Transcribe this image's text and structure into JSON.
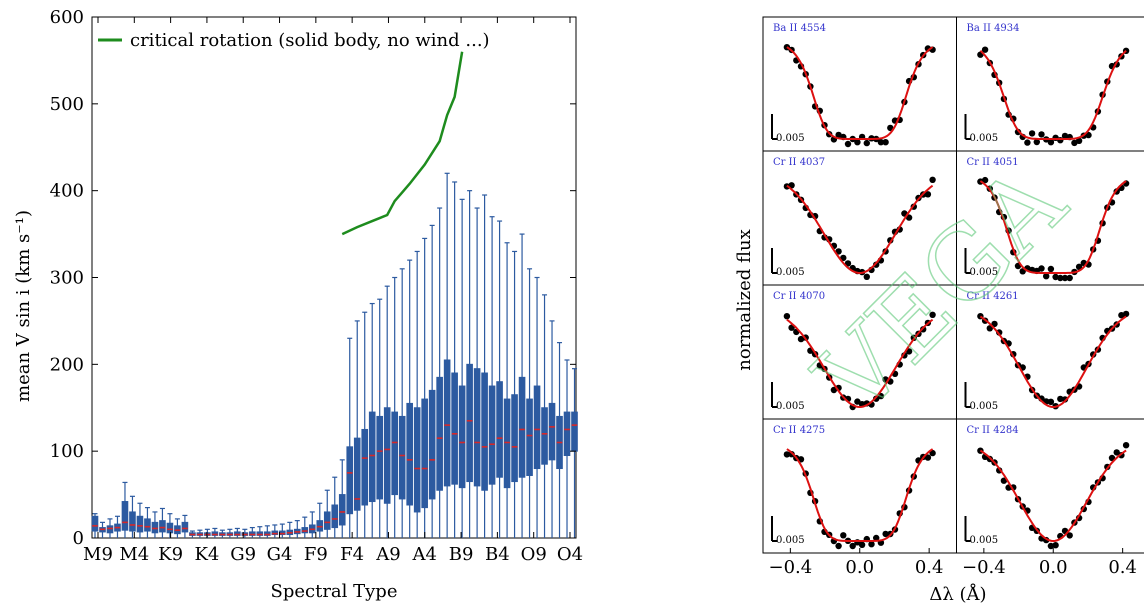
{
  "chart_data": [
    {
      "type": "box",
      "xlabel": "Spectral Type",
      "ylabel": "mean V sin i (km s⁻¹)",
      "ylim": [
        0,
        600
      ],
      "yticks": [
        0,
        100,
        200,
        300,
        400,
        500,
        600
      ],
      "xtick_labels": [
        "M9",
        "M4",
        "K9",
        "K4",
        "G9",
        "G4",
        "F9",
        "F4",
        "A9",
        "A4",
        "B9",
        "B4",
        "O9",
        "O4"
      ],
      "legend": {
        "position": "top-left",
        "entries": [
          "critical rotation (solid body, no wind ...)"
        ]
      },
      "colors": {
        "box": "#2c5aa0",
        "median": "#d62728",
        "critical": "#1e8c1e"
      },
      "critical_rotation": {
        "name": "critical rotation (solid body, no wind ...)",
        "points": [
          [
            33,
            350
          ],
          [
            35,
            358
          ],
          [
            37,
            365
          ],
          [
            39,
            372
          ],
          [
            40,
            388
          ],
          [
            41,
            398
          ],
          [
            42,
            408
          ],
          [
            44,
            430
          ],
          [
            46,
            457
          ],
          [
            47,
            487
          ],
          [
            48,
            508
          ],
          [
            49,
            560
          ]
        ]
      },
      "boxes": [
        {
          "q1": 8,
          "q3": 25,
          "median": 14,
          "whisker": 28
        },
        {
          "q1": 7,
          "q3": 12,
          "median": 10,
          "whisker": 18
        },
        {
          "q1": 6,
          "q3": 14,
          "median": 11,
          "whisker": 22
        },
        {
          "q1": 8,
          "q3": 16,
          "median": 12,
          "whisker": 25
        },
        {
          "q1": 9,
          "q3": 42,
          "median": 18,
          "whisker": 64
        },
        {
          "q1": 8,
          "q3": 30,
          "median": 15,
          "whisker": 48
        },
        {
          "q1": 7,
          "q3": 25,
          "median": 14,
          "whisker": 40
        },
        {
          "q1": 8,
          "q3": 22,
          "median": 13,
          "whisker": 35
        },
        {
          "q1": 6,
          "q3": 18,
          "median": 11,
          "whisker": 30
        },
        {
          "q1": 7,
          "q3": 20,
          "median": 12,
          "whisker": 34
        },
        {
          "q1": 6,
          "q3": 17,
          "median": 10,
          "whisker": 28
        },
        {
          "q1": 5,
          "q3": 14,
          "median": 9,
          "whisker": 22
        },
        {
          "q1": 7,
          "q3": 18,
          "median": 11,
          "whisker": 26
        },
        {
          "q1": 3,
          "q3": 6,
          "median": 4,
          "whisker": 8
        },
        {
          "q1": 3,
          "q3": 6,
          "median": 4,
          "whisker": 9
        },
        {
          "q1": 3,
          "q3": 6,
          "median": 4,
          "whisker": 10
        },
        {
          "q1": 3,
          "q3": 7,
          "median": 4,
          "whisker": 11
        },
        {
          "q1": 3,
          "q3": 6,
          "median": 4,
          "whisker": 9
        },
        {
          "q1": 3,
          "q3": 6,
          "median": 4,
          "whisker": 10
        },
        {
          "q1": 3,
          "q3": 7,
          "median": 4,
          "whisker": 11
        },
        {
          "q1": 3,
          "q3": 6,
          "median": 4,
          "whisker": 10
        },
        {
          "q1": 3,
          "q3": 7,
          "median": 4,
          "whisker": 12
        },
        {
          "q1": 3,
          "q3": 7,
          "median": 4,
          "whisker": 13
        },
        {
          "q1": 3,
          "q3": 7,
          "median": 4,
          "whisker": 14
        },
        {
          "q1": 4,
          "q3": 8,
          "median": 5,
          "whisker": 15
        },
        {
          "q1": 4,
          "q3": 8,
          "median": 5,
          "whisker": 16
        },
        {
          "q1": 4,
          "q3": 9,
          "median": 6,
          "whisker": 18
        },
        {
          "q1": 5,
          "q3": 10,
          "median": 7,
          "whisker": 20
        },
        {
          "q1": 6,
          "q3": 12,
          "median": 8,
          "whisker": 24
        },
        {
          "q1": 6,
          "q3": 15,
          "median": 10,
          "whisker": 30
        },
        {
          "q1": 8,
          "q3": 20,
          "median": 13,
          "whisker": 40
        },
        {
          "q1": 10,
          "q3": 30,
          "median": 18,
          "whisker": 55
        },
        {
          "q1": 12,
          "q3": 38,
          "median": 22,
          "whisker": 70
        },
        {
          "q1": 15,
          "q3": 50,
          "median": 30,
          "whisker": 90
        },
        {
          "q1": 28,
          "q3": 105,
          "median": 75,
          "whisker": 230
        },
        {
          "q1": 32,
          "q3": 115,
          "median": 45,
          "whisker": 250
        },
        {
          "q1": 38,
          "q3": 125,
          "median": 92,
          "whisker": 260
        },
        {
          "q1": 42,
          "q3": 145,
          "median": 95,
          "whisker": 270
        },
        {
          "q1": 45,
          "q3": 140,
          "median": 100,
          "whisker": 275
        },
        {
          "q1": 40,
          "q3": 150,
          "median": 102,
          "whisker": 290
        },
        {
          "q1": 50,
          "q3": 145,
          "median": 110,
          "whisker": 300
        },
        {
          "q1": 45,
          "q3": 140,
          "median": 95,
          "whisker": 310
        },
        {
          "q1": 38,
          "q3": 155,
          "median": 90,
          "whisker": 320
        },
        {
          "q1": 30,
          "q3": 150,
          "median": 80,
          "whisker": 330
        },
        {
          "q1": 35,
          "q3": 160,
          "median": 80,
          "whisker": 345
        },
        {
          "q1": 45,
          "q3": 170,
          "median": 90,
          "whisker": 360
        },
        {
          "q1": 55,
          "q3": 185,
          "median": 115,
          "whisker": 380
        },
        {
          "q1": 60,
          "q3": 205,
          "median": 130,
          "whisker": 420
        },
        {
          "q1": 62,
          "q3": 190,
          "median": 120,
          "whisker": 410
        },
        {
          "q1": 58,
          "q3": 175,
          "median": 110,
          "whisker": 390
        },
        {
          "q1": 65,
          "q3": 200,
          "median": 135,
          "whisker": 400
        },
        {
          "q1": 60,
          "q3": 195,
          "median": 110,
          "whisker": 380
        },
        {
          "q1": 55,
          "q3": 190,
          "median": 105,
          "whisker": 395
        },
        {
          "q1": 62,
          "q3": 175,
          "median": 108,
          "whisker": 370
        },
        {
          "q1": 70,
          "q3": 180,
          "median": 115,
          "whisker": 365
        },
        {
          "q1": 58,
          "q3": 160,
          "median": 110,
          "whisker": 340
        },
        {
          "q1": 65,
          "q3": 165,
          "median": 105,
          "whisker": 330
        },
        {
          "q1": 70,
          "q3": 185,
          "median": 125,
          "whisker": 350
        },
        {
          "q1": 72,
          "q3": 160,
          "median": 118,
          "whisker": 310
        },
        {
          "q1": 80,
          "q3": 175,
          "median": 125,
          "whisker": 300
        },
        {
          "q1": 85,
          "q3": 150,
          "median": 120,
          "whisker": 280
        },
        {
          "q1": 90,
          "q3": 155,
          "median": 128,
          "whisker": 250
        },
        {
          "q1": 80,
          "q3": 140,
          "median": 110,
          "whisker": 225
        },
        {
          "q1": 95,
          "q3": 145,
          "median": 125,
          "whisker": 205
        },
        {
          "q1": 100,
          "q3": 145,
          "median": 130,
          "whisker": 195
        }
      ]
    },
    {
      "type": "line",
      "ylabel": "normalized flux",
      "xlabel": "Δλ (Å)",
      "xlim": [
        -0.5,
        0.5
      ],
      "xtick_labels": [
        "−0.4",
        "0.0",
        "0.4"
      ],
      "scale_bar_label": "0.005",
      "watermark": "VEGA",
      "colors": {
        "points": "#000000",
        "fit": "#dd1111",
        "title": "#3333cc",
        "watermark": "#5fc97a"
      },
      "panels": [
        {
          "title": "Ba II 4554",
          "shape": "ushape",
          "width": 0.28
        },
        {
          "title": "Ba II 4934",
          "shape": "ushape",
          "width": 0.3
        },
        {
          "title": "Cr II 4037",
          "shape": "vshape",
          "width": 0.32
        },
        {
          "title": "Cr II 4051",
          "shape": "ushape",
          "width": 0.28
        },
        {
          "title": "Cr II 4070",
          "shape": "vshape",
          "width": 0.32
        },
        {
          "title": "Cr II 4261",
          "shape": "vshape",
          "width": 0.3
        },
        {
          "title": "Cr II 4275",
          "shape": "ushape",
          "width": 0.28
        },
        {
          "title": "Cr II 4284",
          "shape": "vshape",
          "width": 0.3
        }
      ]
    }
  ]
}
